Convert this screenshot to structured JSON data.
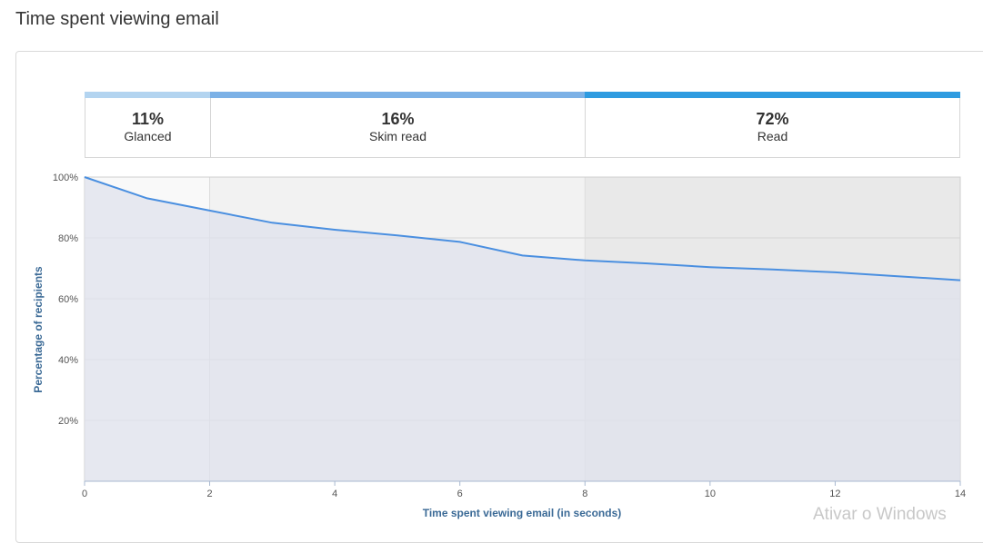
{
  "page": {
    "title": "Time spent viewing email"
  },
  "segments": [
    {
      "percent": "11%",
      "label": "Glanced",
      "color": "#b3d4f0"
    },
    {
      "percent": "16%",
      "label": "Skim read",
      "color": "#7cb1e6"
    },
    {
      "percent": "72%",
      "label": "Read",
      "color": "#2e9be0"
    }
  ],
  "watermark": "Ativar o Windows",
  "chart_data": {
    "type": "area",
    "x": [
      0,
      1,
      2,
      3,
      4,
      5,
      6,
      7,
      8,
      9,
      10,
      11,
      12,
      13,
      14
    ],
    "series": [
      {
        "values": [
          100,
          93,
          89,
          85,
          82.7,
          80.8,
          78.7,
          74.2,
          72.6,
          71.6,
          70.4,
          69.6,
          68.7,
          67.4,
          66.1
        ],
        "color": "#4a8fe0"
      }
    ],
    "xlabel": "Time spent viewing email (in seconds)",
    "ylabel": "Percentage of recipients",
    "xlim": [
      0,
      14
    ],
    "ylim": [
      0,
      100
    ],
    "xticks": [
      "0",
      "2",
      "4",
      "6",
      "8",
      "10",
      "12",
      "14"
    ],
    "yticks": [
      "20%",
      "40%",
      "60%",
      "80%",
      "100%"
    ],
    "bands": [
      {
        "from": 0,
        "to": 2,
        "color": "#f9f9f9"
      },
      {
        "from": 2,
        "to": 8,
        "color": "#f2f2f2"
      },
      {
        "from": 8,
        "to": 14,
        "color": "#e9e9e9"
      }
    ],
    "area_fill": "#dfe2ec",
    "grid": true,
    "legend": "none"
  }
}
